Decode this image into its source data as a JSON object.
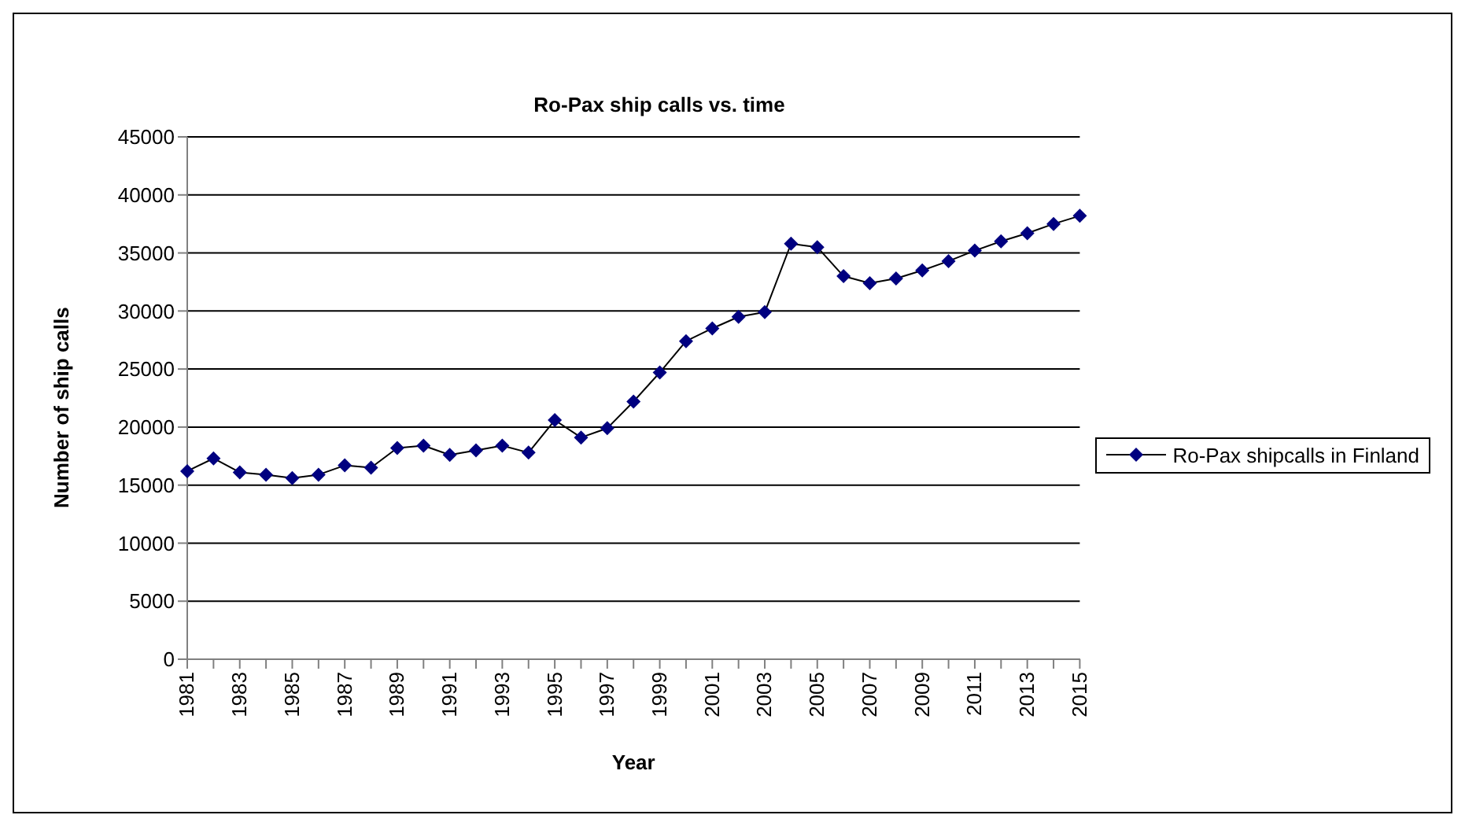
{
  "chart_data": {
    "type": "line",
    "title": "Ro-Pax ship calls vs. time",
    "xlabel": "Year",
    "ylabel": "Number of ship calls",
    "categories": [
      "1981",
      null,
      "1983",
      null,
      "1985",
      null,
      "1987",
      null,
      "1989",
      null,
      "1991",
      null,
      "1993",
      null,
      "1995",
      null,
      "1997",
      null,
      "1999",
      null,
      "2001",
      null,
      "2003",
      null,
      "2005",
      null,
      "2007",
      null,
      "2009",
      null,
      "2011",
      null,
      "2013",
      null,
      "2015"
    ],
    "series": [
      {
        "name": "Ro-Pax shipcalls in Finland",
        "color": "#000080",
        "values": [
          16200,
          17300,
          16100,
          15900,
          15600,
          15900,
          16700,
          16500,
          18200,
          18400,
          17600,
          18000,
          18400,
          17800,
          20600,
          19100,
          19900,
          22200,
          24700,
          27400,
          28500,
          29500,
          29900,
          35800,
          35500,
          33000,
          32400,
          32800,
          33500,
          34300,
          35200,
          36000,
          36700,
          37500,
          38200
        ]
      }
    ],
    "ylim": [
      0,
      45000
    ],
    "yticks": [
      0,
      5000,
      10000,
      15000,
      20000,
      25000,
      30000,
      35000,
      40000,
      45000
    ],
    "grid": "y",
    "legend": "right",
    "marker": "diamond",
    "line_style": "solid"
  }
}
